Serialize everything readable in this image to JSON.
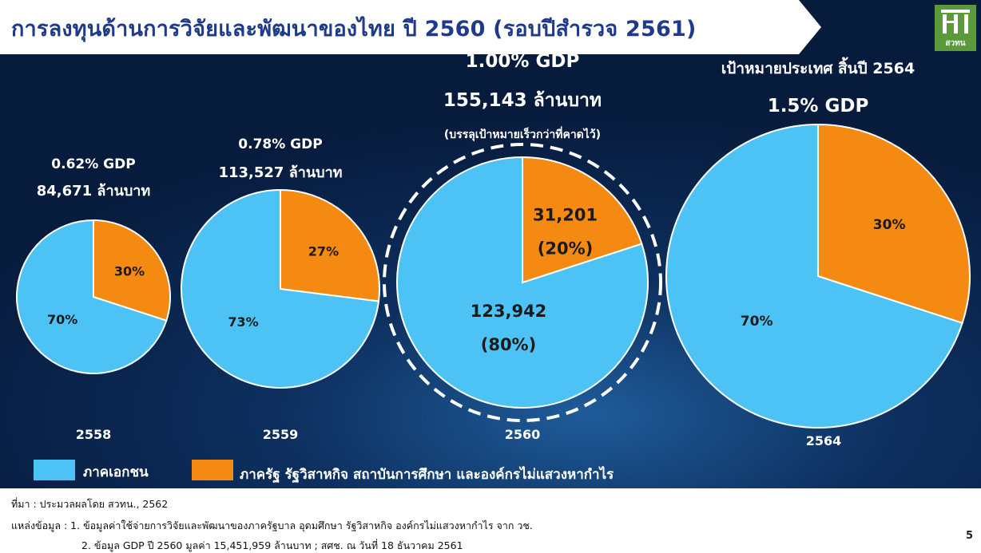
{
  "header": {
    "title": "การลงทุนด้านการวิจัยและพัฒนาของไทย ปี 2560 (รอบปีสำรวจ 2561)",
    "logo_text": "สวทน",
    "logo_icon": "building-logo-icon"
  },
  "colors": {
    "private": "#4dc3f5",
    "public": "#f58a12",
    "background": "#0d2f5e"
  },
  "chart_data": {
    "type": "pie",
    "series_names": [
      "ภาคเอกชน",
      "ภาครัฐ รัฐวิสาหกิจ สถาบันการศึกษา และองค์กรไม่แสวงหากำไร"
    ],
    "charts": [
      {
        "year": "2558",
        "gdp_text": "0.62% GDP",
        "amount_text": "84,671 ล้านบาท",
        "slices": [
          {
            "series": "ภาคเอกชน",
            "percent": 70,
            "label": "70%"
          },
          {
            "series": "ภาครัฐ รัฐวิสาหกิจ สถาบันการศึกษา และองค์กรไม่แสวงหากำไร",
            "percent": 30,
            "label": "30%"
          }
        ]
      },
      {
        "year": "2559",
        "gdp_text": "0.78% GDP",
        "amount_text": "113,527 ล้านบาท",
        "slices": [
          {
            "series": "ภาคเอกชน",
            "percent": 73,
            "label": "73%"
          },
          {
            "series": "ภาครัฐ รัฐวิสาหกิจ สถาบันการศึกษา และองค์กรไม่แสวงหากำไร",
            "percent": 27,
            "label": "27%"
          }
        ]
      },
      {
        "year": "2560",
        "gdp_text": "1.00% GDP",
        "amount_text": "155,143 ล้านบาท",
        "note": "(บรรลุเป้าหมายเร็วกว่าที่คาดไว้)",
        "slices": [
          {
            "series": "ภาคเอกชน",
            "percent": 80,
            "value": 123942,
            "label": "123,942",
            "sublabel": "(80%)"
          },
          {
            "series": "ภาครัฐ รัฐวิสาหกิจ สถาบันการศึกษา และองค์กรไม่แสวงหากำไร",
            "percent": 20,
            "value": 31201,
            "label": "31,201",
            "sublabel": "(20%)"
          }
        ]
      },
      {
        "year": "2564",
        "target_text": "เป้าหมายประเทศ สิ้นปี 2564",
        "gdp_text": "1.5% GDP",
        "slices": [
          {
            "series": "ภาคเอกชน",
            "percent": 70,
            "label": "70%"
          },
          {
            "series": "ภาครัฐ รัฐวิสาหกิจ สถาบันการศึกษา และองค์กรไม่แสวงหากำไร",
            "percent": 30,
            "label": "30%"
          }
        ]
      }
    ]
  },
  "legend": {
    "private_label": "ภาคเอกชน",
    "public_label": "ภาครัฐ รัฐวิสาหกิจ สถาบันการศึกษา และองค์กรไม่แสวงหากำไร"
  },
  "footer": {
    "source": "ที่มา : ประมวลผลโดย สวทน., 2562",
    "data_source_1": "แหล่งข้อมูล : 1. ข้อมูลค่าใช้จ่ายการวิจัยและพัฒนาของภาครัฐบาล อุดมศึกษา รัฐวิสาหกิจ องค์กรไม่แสวงหากำไร จาก วช.",
    "data_source_2": "2. ข้อมูล GDP ปี 2560 มูลค่า 15,451,959 ล้านบาท  ; สศช. ณ วันที่ 18 ธันวาคม 2561",
    "page_number": "5"
  }
}
